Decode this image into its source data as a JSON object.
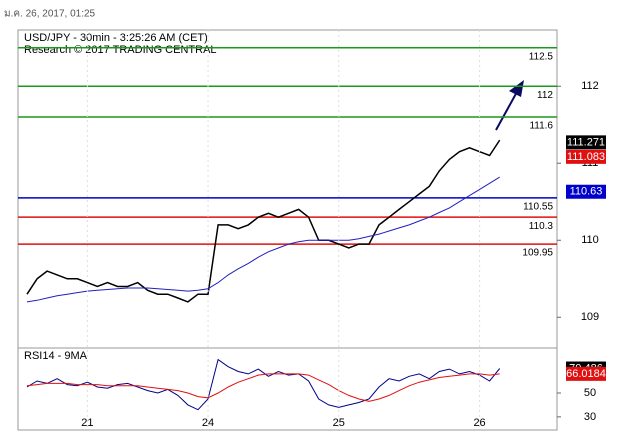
{
  "header": "ม.ค. 26, 2017, 01:25",
  "chart_data": [
    {
      "type": "line",
      "title": "USD/JPY - 30min - 3:25:26 AM (CET)",
      "subtitle": "Research © 2017 TRADING CENTRAL",
      "categories": [
        null,
        null,
        null,
        null,
        null,
        null,
        "21",
        null,
        null,
        null,
        null,
        null,
        null,
        null,
        null,
        null,
        null,
        null,
        "24",
        null,
        null,
        null,
        null,
        null,
        null,
        null,
        null,
        null,
        null,
        null,
        null,
        "25",
        null,
        null,
        null,
        null,
        null,
        null,
        null,
        null,
        null,
        null,
        null,
        null,
        null,
        "26",
        null,
        null,
        null,
        null,
        null,
        null,
        null
      ],
      "series": [
        {
          "color": "#000000",
          "values": [
            109.3,
            109.5,
            109.6,
            109.55,
            109.5,
            109.5,
            109.45,
            109.4,
            109.45,
            109.4,
            109.4,
            109.45,
            109.35,
            109.3,
            109.3,
            109.25,
            109.2,
            109.3,
            109.3,
            110.2,
            110.2,
            110.15,
            110.2,
            110.3,
            110.35,
            110.3,
            110.35,
            110.4,
            110.3,
            110.0,
            110.0,
            109.95,
            109.9,
            109.95,
            109.95,
            110.2,
            110.3,
            110.4,
            110.5,
            110.6,
            110.7,
            110.9,
            111.05,
            111.15,
            111.2,
            111.15,
            111.1,
            111.3,
            null,
            null,
            null,
            null,
            null
          ]
        },
        {
          "color": "#2020c0",
          "values": [
            109.2,
            109.22,
            109.25,
            109.28,
            109.3,
            109.32,
            109.34,
            109.35,
            109.36,
            109.37,
            109.38,
            109.38,
            109.38,
            109.37,
            109.36,
            109.35,
            109.34,
            109.35,
            109.37,
            109.45,
            109.55,
            109.63,
            109.7,
            109.78,
            109.85,
            109.9,
            109.95,
            109.98,
            110.0,
            110.0,
            110.0,
            110.0,
            110.0,
            110.02,
            110.05,
            110.08,
            110.12,
            110.16,
            110.2,
            110.25,
            110.3,
            110.36,
            110.42,
            110.5,
            110.58,
            110.66,
            110.74,
            110.82,
            null,
            null,
            null,
            null,
            null
          ]
        }
      ],
      "ylim": [
        108.64,
        112.73
      ],
      "yticks": [
        109,
        110,
        111,
        112
      ],
      "levels": [
        {
          "value": 112.5,
          "color": "#1a9a1a"
        },
        {
          "value": 112,
          "color": "#1a9a1a"
        },
        {
          "value": 111.6,
          "color": "#1a9a1a"
        },
        {
          "value": 110.55,
          "color": "#0000cc"
        },
        {
          "value": 110.3,
          "color": "#e01010"
        },
        {
          "value": 109.95,
          "color": "#e01010"
        }
      ],
      "price_labels": [
        {
          "value": 111.271,
          "color": "#000000"
        },
        {
          "value": 111.083,
          "color": "#e01010"
        },
        {
          "value": 110.63,
          "color": "#0000cc"
        }
      ]
    },
    {
      "type": "line",
      "title": "RSI14 - 9MA",
      "series": [
        {
          "color": "#00008b",
          "values": [
            55,
            60,
            58,
            62,
            57,
            56,
            59,
            55,
            54,
            57,
            58,
            55,
            52,
            50,
            53,
            48,
            40,
            36,
            45,
            78,
            72,
            68,
            66,
            70,
            64,
            68,
            65,
            66,
            60,
            45,
            40,
            38,
            40,
            42,
            45,
            55,
            62,
            60,
            64,
            66,
            62,
            68,
            70,
            66,
            68,
            65,
            60,
            70.486,
            null,
            null,
            null,
            null,
            null
          ]
        },
        {
          "color": "#e01010",
          "values": [
            56,
            57,
            58,
            58,
            58,
            57,
            57,
            57,
            56,
            56,
            56,
            56,
            55,
            54,
            53,
            52,
            50,
            47,
            46,
            50,
            55,
            59,
            62,
            65,
            66,
            66,
            66,
            66,
            65,
            61,
            57,
            52,
            48,
            45,
            43,
            45,
            48,
            52,
            56,
            59,
            61,
            63,
            64,
            65,
            66,
            66,
            65,
            66.0184,
            null,
            null,
            null,
            null,
            null
          ]
        }
      ],
      "ylim": [
        19,
        86
      ],
      "yticks": [
        30,
        50
      ],
      "price_labels": [
        {
          "value": 70.486,
          "color": "#000000"
        },
        {
          "value": 66.0184,
          "color": "#e01010"
        }
      ]
    }
  ]
}
